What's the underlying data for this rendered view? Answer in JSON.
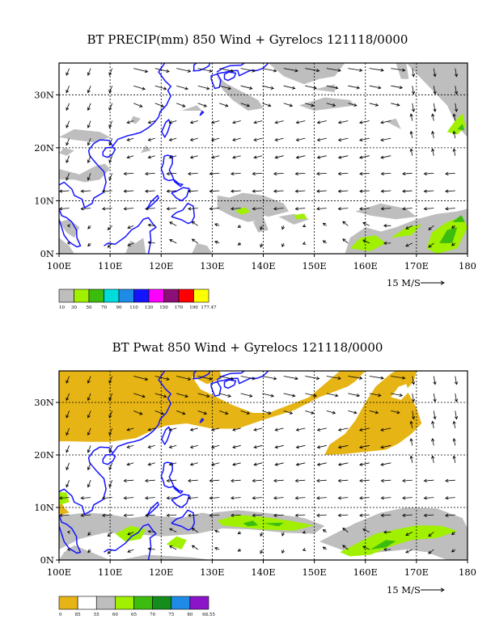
{
  "panels": [
    {
      "title": "BT PRECIP(mm) 850 Wind + Gyrelocs 121118/0000",
      "x_ticks": [
        "100E",
        "110E",
        "120E",
        "130E",
        "140E",
        "150E",
        "160E",
        "170E",
        "180"
      ],
      "y_ticks": [
        "0N",
        "10N",
        "20N",
        "30N"
      ],
      "vector_ref": "15 M/S",
      "legend": {
        "labels": [
          "10",
          "30",
          "50",
          "70",
          "90",
          "110",
          "130",
          "150",
          "170",
          "190",
          "177.47"
        ],
        "colors": [
          "#bebebe",
          "#a0f000",
          "#3cbc0e",
          "#00dcdc",
          "#1e8ce6",
          "#1414ff",
          "#ff00ff",
          "#8c0f78",
          "#ff0000",
          "#ffff00"
        ]
      }
    },
    {
      "title": "BT Pwat 850 Wind + Gyrelocs 121118/0000",
      "x_ticks": [
        "100E",
        "110E",
        "120E",
        "130E",
        "140E",
        "150E",
        "160E",
        "170E",
        "180"
      ],
      "y_ticks": [
        "0N",
        "10N",
        "20N",
        "30N"
      ],
      "vector_ref": "15 M/S",
      "legend": {
        "labels": [
          "0",
          "85",
          "55",
          "60",
          "65",
          "70",
          "75",
          "80",
          "68.55"
        ],
        "colors": [
          "#e6b414",
          "#ffffff",
          "#bebebe",
          "#a0f000",
          "#3cbc0e",
          "#148c1e",
          "#1e8ce6",
          "#8c14c8"
        ]
      }
    }
  ],
  "map": {
    "lon_range": [
      100,
      180
    ],
    "lat_range": [
      0,
      36
    ],
    "coast_color": "#1414ff",
    "grid_lon": [
      110,
      120,
      130,
      140,
      150,
      160,
      170
    ],
    "grid_lat": [
      10,
      20,
      30
    ]
  }
}
